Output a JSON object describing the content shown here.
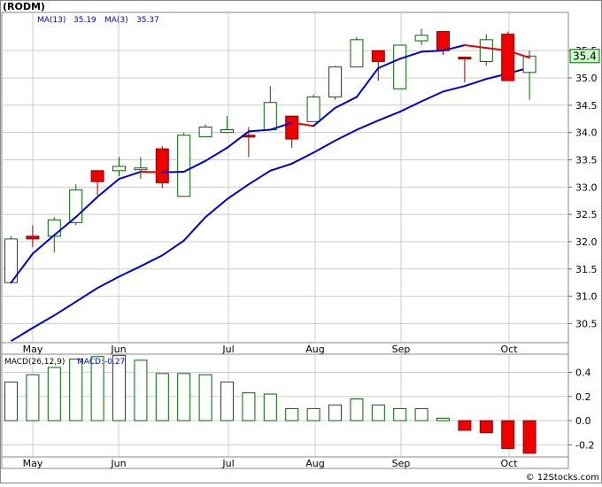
{
  "header": {
    "ticker": "(RODM)",
    "ma13_label": "MA(13)",
    "ma13_value": "35.19",
    "ma3_label": "MA(3)",
    "ma3_value": "35.37"
  },
  "macd_header": {
    "label": "MACD(26,12,9)",
    "macd_label": "MACD:",
    "macd_value": "-0.27"
  },
  "last_price": "35.4",
  "watermark": "© 12Stocks.com",
  "colors": {
    "up_fill": "#ffffff",
    "up_stroke": "#006600",
    "down_fill": "#ee0000",
    "down_stroke": "#880000",
    "ma_long": "#0000cc",
    "ma_short_up": "#0000cc",
    "ma_short_down": "#ee0000",
    "grid": "#cccccc",
    "price_tag_bg": "#ccffcc"
  },
  "chart_data": [
    {
      "type": "candlestick",
      "title": "(RODM)",
      "interval": "weekly",
      "x_tick_labels": [
        "May",
        "Jun",
        "Jul",
        "Aug",
        "Sep",
        "Oct"
      ],
      "ylim": [
        30.15,
        36.2
      ],
      "y_ticks": [
        30.5,
        31.0,
        31.5,
        32.0,
        32.5,
        33.0,
        33.5,
        34.0,
        34.5,
        35.0,
        35.5
      ],
      "grid": true,
      "candles": [
        {
          "open": 31.25,
          "high": 32.1,
          "low": 31.25,
          "close": 32.05
        },
        {
          "open": 32.1,
          "high": 32.3,
          "low": 31.9,
          "close": 32.05
        },
        {
          "open": 32.1,
          "high": 32.45,
          "low": 31.8,
          "close": 32.4
        },
        {
          "open": 32.35,
          "high": 33.05,
          "low": 32.3,
          "close": 32.95
        },
        {
          "open": 33.3,
          "high": 33.3,
          "low": 32.85,
          "close": 33.1
        },
        {
          "open": 33.3,
          "high": 33.55,
          "low": 33.2,
          "close": 33.38
        },
        {
          "open": 33.32,
          "high": 33.55,
          "low": 33.15,
          "close": 33.35
        },
        {
          "open": 33.7,
          "high": 33.75,
          "low": 32.98,
          "close": 33.08
        },
        {
          "open": 32.83,
          "high": 34.0,
          "low": 32.83,
          "close": 33.95
        },
        {
          "open": 33.92,
          "high": 34.15,
          "low": 33.92,
          "close": 34.1
        },
        {
          "open": 34.0,
          "high": 34.3,
          "low": 34.0,
          "close": 34.05
        },
        {
          "open": 33.95,
          "high": 34.1,
          "low": 33.55,
          "close": 33.92
        },
        {
          "open": 34.05,
          "high": 34.85,
          "low": 34.05,
          "close": 34.55
        },
        {
          "open": 34.3,
          "high": 34.3,
          "low": 33.72,
          "close": 33.88
        },
        {
          "open": 34.2,
          "high": 34.7,
          "low": 34.2,
          "close": 34.65
        },
        {
          "open": 34.65,
          "high": 35.22,
          "low": 34.6,
          "close": 35.2
        },
        {
          "open": 35.2,
          "high": 35.75,
          "low": 35.2,
          "close": 35.7
        },
        {
          "open": 35.5,
          "high": 35.5,
          "low": 34.95,
          "close": 35.3
        },
        {
          "open": 34.8,
          "high": 35.6,
          "low": 34.8,
          "close": 35.6
        },
        {
          "open": 35.68,
          "high": 35.9,
          "low": 35.6,
          "close": 35.78
        },
        {
          "open": 35.85,
          "high": 35.85,
          "low": 35.42,
          "close": 35.5
        },
        {
          "open": 35.38,
          "high": 35.38,
          "low": 34.92,
          "close": 35.35
        },
        {
          "open": 35.3,
          "high": 35.8,
          "low": 35.22,
          "close": 35.7
        },
        {
          "open": 35.8,
          "high": 35.85,
          "low": 34.95,
          "close": 34.95
        },
        {
          "open": 35.1,
          "high": 35.5,
          "low": 34.6,
          "close": 35.4
        }
      ],
      "ma13": [
        30.18,
        30.42,
        30.65,
        30.9,
        31.15,
        31.36,
        31.55,
        31.75,
        32.02,
        32.45,
        32.78,
        33.05,
        33.3,
        33.43,
        33.63,
        33.85,
        34.05,
        34.22,
        34.38,
        34.57,
        34.75,
        34.85,
        34.98,
        35.08,
        35.19
      ],
      "ma3": [
        31.25,
        31.78,
        32.12,
        32.45,
        32.82,
        33.15,
        33.28,
        33.27,
        33.28,
        33.48,
        33.72,
        34.02,
        34.05,
        34.18,
        34.12,
        34.45,
        34.65,
        35.18,
        35.35,
        35.48,
        35.5,
        35.6,
        35.55,
        35.5,
        35.37
      ],
      "last_price": 35.4
    },
    {
      "type": "bar",
      "title": "MACD(26,12,9)",
      "ylim": [
        -0.3,
        0.55
      ],
      "y_ticks": [
        -0.2,
        0.0,
        0.2,
        0.4
      ],
      "x_tick_labels": [
        "May",
        "Jun",
        "Jul",
        "Aug",
        "Sep",
        "Oct"
      ],
      "values": [
        0.32,
        0.38,
        0.44,
        0.51,
        0.53,
        0.54,
        0.5,
        0.39,
        0.39,
        0.38,
        0.32,
        0.23,
        0.22,
        0.1,
        0.1,
        0.13,
        0.18,
        0.13,
        0.1,
        0.1,
        0.02,
        -0.08,
        -0.1,
        -0.23,
        -0.27
      ],
      "grid": true
    }
  ]
}
